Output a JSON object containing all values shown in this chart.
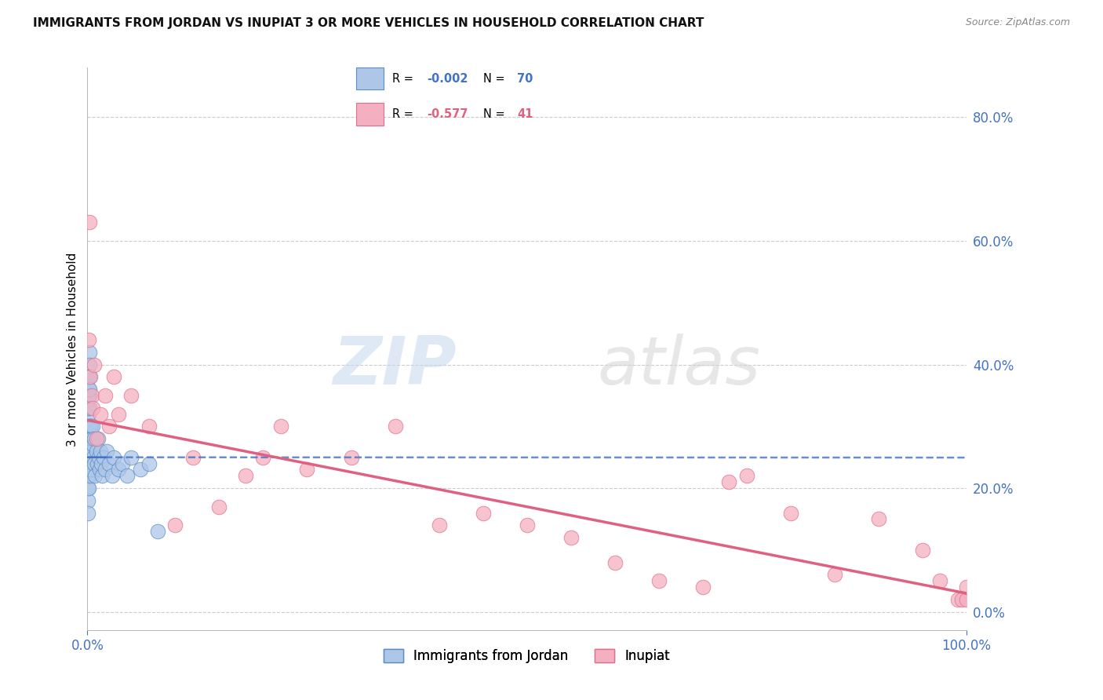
{
  "title": "IMMIGRANTS FROM JORDAN VS INUPIAT 3 OR MORE VEHICLES IN HOUSEHOLD CORRELATION CHART",
  "source": "Source: ZipAtlas.com",
  "ylabel": "3 or more Vehicles in Household",
  "legend_labels": [
    "Immigrants from Jordan",
    "Inupiat"
  ],
  "legend_r_blue": "-0.002",
  "legend_n_blue": "70",
  "legend_r_pink": "-0.577",
  "legend_n_pink": "41",
  "color_blue_face": "#aec6e8",
  "color_blue_edge": "#5b8ec4",
  "color_pink_face": "#f4afc0",
  "color_pink_edge": "#e07090",
  "line_blue_color": "#4472c4",
  "line_pink_color": "#e06080",
  "grid_color": "#cccccc",
  "background_color": "#ffffff",
  "axis_tick_color": "#4472c4",
  "title_fontsize": 11,
  "blue_x": [
    0.05,
    0.05,
    0.05,
    0.05,
    0.05,
    0.05,
    0.05,
    0.05,
    0.05,
    0.05,
    0.1,
    0.1,
    0.1,
    0.1,
    0.1,
    0.1,
    0.1,
    0.1,
    0.15,
    0.15,
    0.15,
    0.15,
    0.15,
    0.2,
    0.2,
    0.2,
    0.2,
    0.2,
    0.25,
    0.25,
    0.25,
    0.25,
    0.3,
    0.3,
    0.3,
    0.3,
    0.35,
    0.35,
    0.4,
    0.4,
    0.45,
    0.5,
    0.55,
    0.6,
    0.65,
    0.7,
    0.75,
    0.8,
    0.9,
    1.0,
    1.1,
    1.2,
    1.3,
    1.4,
    1.5,
    1.6,
    1.7,
    1.8,
    2.0,
    2.2,
    2.5,
    2.8,
    3.0,
    3.5,
    4.0,
    4.5,
    5.0,
    6.0,
    7.0,
    8.0
  ],
  "blue_y": [
    24,
    22,
    20,
    18,
    16,
    28,
    26,
    30,
    25,
    23,
    32,
    35,
    28,
    30,
    26,
    22,
    24,
    20,
    38,
    36,
    33,
    28,
    25,
    42,
    40,
    38,
    35,
    30,
    38,
    36,
    33,
    28,
    30,
    27,
    25,
    22,
    25,
    23,
    28,
    26,
    30,
    28,
    26,
    30,
    25,
    27,
    24,
    28,
    22,
    26,
    24,
    28,
    25,
    23,
    26,
    24,
    22,
    25,
    23,
    26,
    24,
    22,
    25,
    23,
    24,
    22,
    25,
    23,
    24,
    13
  ],
  "pink_x": [
    0.15,
    0.2,
    0.3,
    0.5,
    0.6,
    0.8,
    1.0,
    1.5,
    2.0,
    2.5,
    3.0,
    3.5,
    5.0,
    7.0,
    10.0,
    12.0,
    15.0,
    18.0,
    20.0,
    22.0,
    25.0,
    30.0,
    35.0,
    40.0,
    45.0,
    50.0,
    55.0,
    60.0,
    65.0,
    70.0,
    73.0,
    75.0,
    80.0,
    85.0,
    90.0,
    95.0,
    97.0,
    99.0,
    99.5,
    100.0,
    100.0
  ],
  "pink_y": [
    44,
    63,
    38,
    35,
    33,
    40,
    28,
    32,
    35,
    30,
    38,
    32,
    35,
    30,
    14,
    25,
    17,
    22,
    25,
    30,
    23,
    25,
    30,
    14,
    16,
    14,
    12,
    8,
    5,
    4,
    21,
    22,
    16,
    6,
    15,
    10,
    5,
    2,
    2,
    2,
    4
  ],
  "xlim": [
    0,
    100
  ],
  "ylim": [
    -3,
    88
  ],
  "yticks": [
    0,
    20,
    40,
    60,
    80
  ],
  "ytick_labels": [
    "0.0%",
    "20.0%",
    "40.0%",
    "60.0%",
    "80.0%"
  ],
  "xtick_labels": [
    "0.0%",
    "100.0%"
  ],
  "blue_line_y_intercept": 25.0,
  "blue_line_slope": -0.0005,
  "pink_line_y_intercept": 31.0,
  "pink_line_slope": -0.28
}
